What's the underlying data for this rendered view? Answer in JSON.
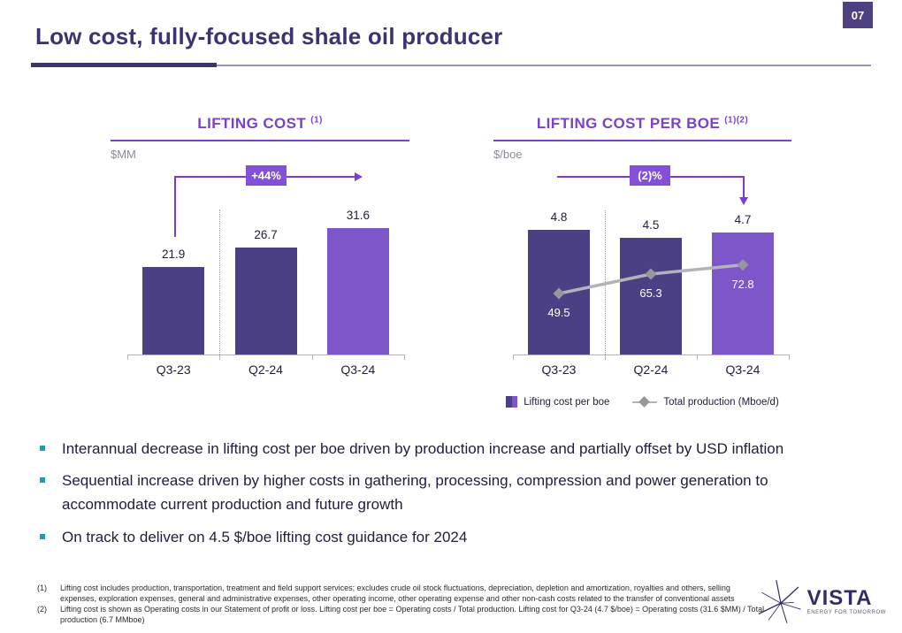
{
  "page": {
    "number": "07"
  },
  "header": {
    "title": "Low cost, fully-focused shale oil producer"
  },
  "chart_data": [
    {
      "type": "bar",
      "title": "LIFTING COST",
      "title_sup": "(1)",
      "unit": "$MM",
      "categories": [
        "Q3-23",
        "Q2-24",
        "Q3-24"
      ],
      "values": [
        21.9,
        26.7,
        31.6
      ],
      "annotation": "+44%",
      "ylim": [
        0,
        35
      ],
      "grid": false,
      "bar_colors": [
        "#4a4083",
        "#4a4083",
        "#7d57c9"
      ]
    },
    {
      "type": "bar+line",
      "title": "LIFTING COST PER BOE",
      "title_sup": "(1)(2)",
      "unit": "$/boe",
      "categories": [
        "Q3-23",
        "Q2-24",
        "Q3-24"
      ],
      "series": [
        {
          "name": "Lifting cost per boe",
          "type": "bar",
          "values": [
            4.8,
            4.5,
            4.7
          ]
        },
        {
          "name": "Total production (Mboe/d)",
          "type": "line",
          "values": [
            49.5,
            65.3,
            72.8
          ]
        }
      ],
      "annotation": "(2)%",
      "ylim": [
        0,
        5.3
      ],
      "y2lim": [
        0,
        112
      ],
      "grid": false,
      "legend_position": "bottom",
      "bar_colors": [
        "#4a4083",
        "#4a4083",
        "#7d57c9"
      ],
      "line_color": "#b3b3b8",
      "marker_color": "#97979d"
    }
  ],
  "bullets": [
    "Interannual decrease in lifting cost per boe driven by production increase and partially offset by USD inflation",
    "Sequential increase driven by higher costs in gathering, processing, compression and power generation to accommodate current production and future growth",
    "On track to deliver on 4.5 $/boe lifting cost guidance for 2024"
  ],
  "footnotes": [
    {
      "num": "(1)",
      "text": "Lifting cost includes production, transportation, treatment and field support services; excludes crude oil stock fluctuations,  depreciation, depletion and amortization, royalties and others, selling expenses, exploration expenses, general and administrative expenses, other operating income, other operating expense and other non-cash costs related to the transfer of conventional assets"
    },
    {
      "num": "(2)",
      "text": "Lifting cost is shown as Operating costs in our Statement of profit or loss. Lifting cost per boe = Operating costs / Total production. Lifting cost for Q3-24 (4.7 $/boe) = Operating costs (31.6 $MM) / Total production (6.7 MMboe)"
    }
  ],
  "logo": {
    "name": "VISTA",
    "tagline": "ENERGY FOR TOMORROW"
  },
  "colors": {
    "title": "#3e3371",
    "chart_title": "#7a42cc",
    "bar_dark": "#4a4083",
    "bar_light": "#7d57c9",
    "annotation_badge": "#8450d8",
    "annotation_line": "#7a3bd4",
    "axis": "#a9b6c6",
    "bullet_marker": "#1d9fb2",
    "page_badge": "#4f4181",
    "logo_navy": "#312d6b"
  }
}
